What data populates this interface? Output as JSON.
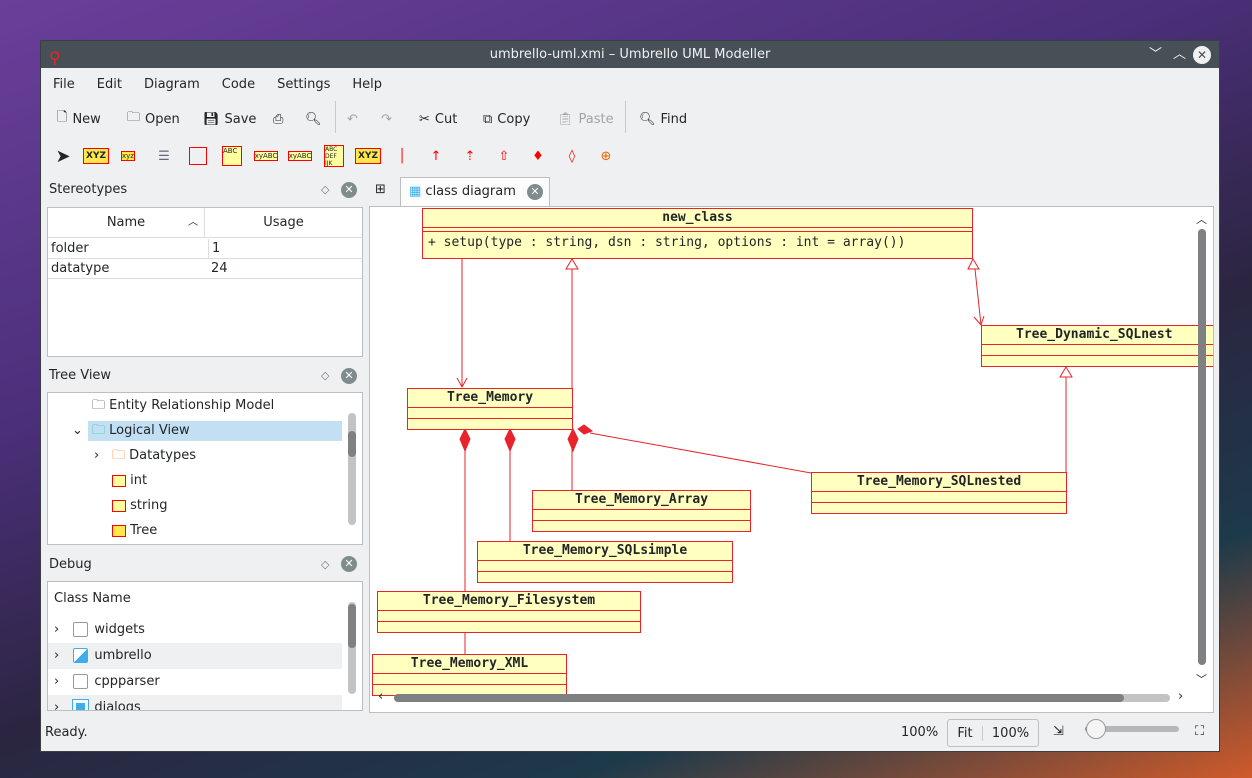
{
  "window": {
    "title": "umbrello-uml.xmi – Umbrello UML Modeller"
  },
  "menu": [
    "File",
    "Edit",
    "Diagram",
    "Code",
    "Settings",
    "Help"
  ],
  "toolbar": {
    "new": "New",
    "open": "Open",
    "save": "Save",
    "cut": "Cut",
    "copy": "Copy",
    "paste": "Paste",
    "find": "Find"
  },
  "stereotypes": {
    "title": "Stereotypes",
    "columns": [
      "Name",
      "Usage"
    ],
    "rows": [
      [
        "folder",
        "1"
      ],
      [
        "datatype",
        "24"
      ]
    ]
  },
  "treeview": {
    "title": "Tree View",
    "items": [
      {
        "label": "Entity Relationship Model",
        "icon": "folder-icon"
      },
      {
        "label": "Logical View",
        "icon": "folder-icon",
        "selected": true
      },
      {
        "label": "Datatypes",
        "icon": "folder-icon"
      },
      {
        "label": "int",
        "icon": "datatype-icon"
      },
      {
        "label": "string",
        "icon": "datatype-icon"
      },
      {
        "label": "Tree",
        "icon": "package-icon"
      }
    ]
  },
  "debug": {
    "title": "Debug",
    "column": "Class Name",
    "items": [
      {
        "label": "widgets",
        "checked": "off"
      },
      {
        "label": "umbrello",
        "checked": "partial"
      },
      {
        "label": "cppparser",
        "checked": "off"
      },
      {
        "label": "dialogs",
        "checked": "on"
      }
    ]
  },
  "tab": {
    "label": "class diagram"
  },
  "diagram": {
    "classes": {
      "new_class": {
        "name": "new_class",
        "op": "+ setup(type : string, dsn : string, options : int = array())"
      },
      "dyn": {
        "name": "Tree_Dynamic_SQLnest"
      },
      "mem": {
        "name": "Tree_Memory"
      },
      "sqlnested": {
        "name": "Tree_Memory_SQLnested"
      },
      "array": {
        "name": "Tree_Memory_Array"
      },
      "sqlsimple": {
        "name": "Tree_Memory_SQLsimple"
      },
      "fs": {
        "name": "Tree_Memory_Filesystem"
      },
      "xml": {
        "name": "Tree_Memory_XML"
      }
    },
    "colors": {
      "fill": "#ffffc0",
      "line": "#e8232b"
    }
  },
  "status": {
    "text": "Ready.",
    "zoom": "100%",
    "fit": "Fit",
    "zoom_btn": "100%",
    "zoom_slider": 0.12
  }
}
